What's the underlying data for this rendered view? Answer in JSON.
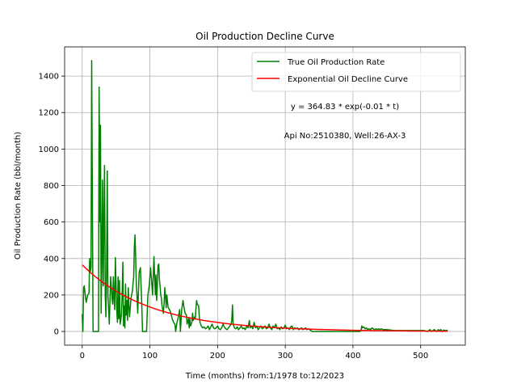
{
  "chart_data": {
    "type": "line",
    "title": "Oil Production Decline Curve",
    "xlabel": "Time (months) from:1/1978 to:12/2023",
    "ylabel": "Oil Production Rate (bbl/month)",
    "xlim": [
      -26,
      566
    ],
    "ylim": [
      -75,
      1560
    ],
    "xticks": [
      0,
      100,
      200,
      300,
      400,
      500
    ],
    "yticks": [
      0,
      200,
      400,
      600,
      800,
      1000,
      1200,
      1400
    ],
    "grid": true,
    "legend_position": "top-right",
    "annotations": [
      "y = 364.83 * exp(-0.01 * t)",
      "Api No:2510380, Well:26-AX-3"
    ],
    "series": [
      {
        "name": "True Oil Production Rate",
        "color": "#008000",
        "points": [
          [
            0,
            95
          ],
          [
            1,
            0
          ],
          [
            2,
            240
          ],
          [
            3,
            250
          ],
          [
            5,
            180
          ],
          [
            6,
            160
          ],
          [
            8,
            200
          ],
          [
            10,
            210
          ],
          [
            11,
            400
          ],
          [
            12,
            330
          ],
          [
            13,
            350
          ],
          [
            14,
            1485
          ],
          [
            15,
            700
          ],
          [
            16,
            0
          ],
          [
            18,
            0
          ],
          [
            20,
            0
          ],
          [
            22,
            0
          ],
          [
            24,
            0
          ],
          [
            25,
            1340
          ],
          [
            26,
            600
          ],
          [
            27,
            1130
          ],
          [
            28,
            100
          ],
          [
            29,
            400
          ],
          [
            30,
            830
          ],
          [
            31,
            250
          ],
          [
            32,
            600
          ],
          [
            33,
            910
          ],
          [
            34,
            200
          ],
          [
            35,
            80
          ],
          [
            36,
            300
          ],
          [
            37,
            880
          ],
          [
            38,
            200
          ],
          [
            40,
            40
          ],
          [
            42,
            300
          ],
          [
            44,
            190
          ],
          [
            45,
            150
          ],
          [
            46,
            300
          ],
          [
            47,
            180
          ],
          [
            48,
            120
          ],
          [
            49,
            405
          ],
          [
            50,
            250
          ],
          [
            51,
            120
          ],
          [
            52,
            50
          ],
          [
            53,
            300
          ],
          [
            54,
            70
          ],
          [
            55,
            280
          ],
          [
            56,
            40
          ],
          [
            57,
            60
          ],
          [
            58,
            100
          ],
          [
            59,
            200
          ],
          [
            60,
            380
          ],
          [
            61,
            30
          ],
          [
            62,
            140
          ],
          [
            63,
            20
          ],
          [
            64,
            260
          ],
          [
            65,
            90
          ],
          [
            66,
            170
          ],
          [
            67,
            60
          ],
          [
            68,
            240
          ],
          [
            69,
            140
          ],
          [
            70,
            80
          ],
          [
            72,
            180
          ],
          [
            74,
            220
          ],
          [
            76,
            300
          ],
          [
            77,
            460
          ],
          [
            78,
            530
          ],
          [
            79,
            400
          ],
          [
            80,
            250
          ],
          [
            81,
            200
          ],
          [
            82,
            100
          ],
          [
            84,
            320
          ],
          [
            86,
            350
          ],
          [
            88,
            150
          ],
          [
            89,
            0
          ],
          [
            91,
            0
          ],
          [
            93,
            0
          ],
          [
            95,
            0
          ],
          [
            97,
            200
          ],
          [
            99,
            250
          ],
          [
            101,
            350
          ],
          [
            103,
            250
          ],
          [
            104,
            200
          ],
          [
            105,
            320
          ],
          [
            106,
            410
          ],
          [
            107,
            300
          ],
          [
            108,
            200
          ],
          [
            109,
            310
          ],
          [
            110,
            170
          ],
          [
            111,
            250
          ],
          [
            112,
            360
          ],
          [
            113,
            370
          ],
          [
            114,
            290
          ],
          [
            115,
            250
          ],
          [
            116,
            200
          ],
          [
            117,
            180
          ],
          [
            118,
            140
          ],
          [
            120,
            100
          ],
          [
            121,
            160
          ],
          [
            122,
            240
          ],
          [
            123,
            200
          ],
          [
            124,
            130
          ],
          [
            125,
            200
          ],
          [
            126,
            160
          ],
          [
            127,
            130
          ],
          [
            129,
            120
          ],
          [
            131,
            100
          ],
          [
            133,
            70
          ],
          [
            135,
            50
          ],
          [
            137,
            40
          ],
          [
            138,
            0
          ],
          [
            140,
            50
          ],
          [
            142,
            80
          ],
          [
            144,
            120
          ],
          [
            145,
            0
          ],
          [
            147,
            120
          ],
          [
            149,
            170
          ],
          [
            150,
            140
          ],
          [
            152,
            100
          ],
          [
            154,
            90
          ],
          [
            155,
            40
          ],
          [
            157,
            70
          ],
          [
            158,
            20
          ],
          [
            159,
            70
          ],
          [
            160,
            30
          ],
          [
            162,
            50
          ],
          [
            163,
            100
          ],
          [
            164,
            60
          ],
          [
            166,
            80
          ],
          [
            167,
            70
          ],
          [
            168,
            120
          ],
          [
            169,
            170
          ],
          [
            170,
            150
          ],
          [
            172,
            140
          ],
          [
            173,
            80
          ],
          [
            174,
            50
          ],
          [
            176,
            30
          ],
          [
            178,
            20
          ],
          [
            180,
            25
          ],
          [
            182,
            15
          ],
          [
            184,
            20
          ],
          [
            186,
            30
          ],
          [
            188,
            10
          ],
          [
            190,
            25
          ],
          [
            192,
            40
          ],
          [
            194,
            20
          ],
          [
            196,
            15
          ],
          [
            198,
            20
          ],
          [
            200,
            30
          ],
          [
            202,
            15
          ],
          [
            204,
            10
          ],
          [
            206,
            20
          ],
          [
            208,
            40
          ],
          [
            210,
            25
          ],
          [
            212,
            15
          ],
          [
            214,
            10
          ],
          [
            216,
            20
          ],
          [
            218,
            30
          ],
          [
            220,
            40
          ],
          [
            221,
            60
          ],
          [
            222,
            145
          ],
          [
            223,
            40
          ],
          [
            225,
            20
          ],
          [
            227,
            15
          ],
          [
            229,
            25
          ],
          [
            231,
            10
          ],
          [
            233,
            20
          ],
          [
            235,
            30
          ],
          [
            237,
            15
          ],
          [
            239,
            20
          ],
          [
            241,
            10
          ],
          [
            243,
            30
          ],
          [
            245,
            20
          ],
          [
            247,
            60
          ],
          [
            248,
            20
          ],
          [
            250,
            30
          ],
          [
            252,
            15
          ],
          [
            254,
            50
          ],
          [
            256,
            20
          ],
          [
            258,
            30
          ],
          [
            260,
            10
          ],
          [
            262,
            20
          ],
          [
            264,
            30
          ],
          [
            266,
            15
          ],
          [
            268,
            20
          ],
          [
            270,
            30
          ],
          [
            272,
            15
          ],
          [
            274,
            20
          ],
          [
            276,
            40
          ],
          [
            278,
            20
          ],
          [
            280,
            10
          ],
          [
            282,
            30
          ],
          [
            284,
            20
          ],
          [
            286,
            40
          ],
          [
            288,
            15
          ],
          [
            290,
            20
          ],
          [
            292,
            10
          ],
          [
            294,
            25
          ],
          [
            296,
            15
          ],
          [
            298,
            20
          ],
          [
            300,
            35
          ],
          [
            302,
            15
          ],
          [
            304,
            20
          ],
          [
            306,
            10
          ],
          [
            308,
            25
          ],
          [
            310,
            30
          ],
          [
            312,
            10
          ],
          [
            314,
            20
          ],
          [
            316,
            15
          ],
          [
            318,
            20
          ],
          [
            320,
            10
          ],
          [
            322,
            15
          ],
          [
            324,
            20
          ],
          [
            326,
            10
          ],
          [
            328,
            15
          ],
          [
            330,
            20
          ],
          [
            332,
            10
          ],
          [
            334,
            15
          ],
          [
            336,
            10
          ],
          [
            338,
            5
          ],
          [
            340,
            0
          ],
          [
            345,
            0
          ],
          [
            350,
            0
          ],
          [
            355,
            0
          ],
          [
            360,
            0
          ],
          [
            365,
            0
          ],
          [
            370,
            0
          ],
          [
            375,
            0
          ],
          [
            380,
            0
          ],
          [
            385,
            0
          ],
          [
            390,
            0
          ],
          [
            395,
            0
          ],
          [
            400,
            0
          ],
          [
            405,
            0
          ],
          [
            410,
            0
          ],
          [
            412,
            5
          ],
          [
            413,
            30
          ],
          [
            414,
            20
          ],
          [
            416,
            25
          ],
          [
            418,
            15
          ],
          [
            420,
            20
          ],
          [
            422,
            10
          ],
          [
            424,
            15
          ],
          [
            426,
            10
          ],
          [
            428,
            20
          ],
          [
            430,
            15
          ],
          [
            432,
            10
          ],
          [
            434,
            15
          ],
          [
            436,
            10
          ],
          [
            438,
            15
          ],
          [
            440,
            10
          ],
          [
            442,
            15
          ],
          [
            444,
            10
          ],
          [
            446,
            10
          ],
          [
            448,
            10
          ],
          [
            450,
            10
          ],
          [
            455,
            8
          ],
          [
            460,
            5
          ],
          [
            465,
            5
          ],
          [
            470,
            5
          ],
          [
            475,
            5
          ],
          [
            480,
            5
          ],
          [
            485,
            5
          ],
          [
            490,
            5
          ],
          [
            495,
            5
          ],
          [
            500,
            5
          ],
          [
            505,
            5
          ],
          [
            510,
            0
          ],
          [
            512,
            5
          ],
          [
            514,
            10
          ],
          [
            516,
            0
          ],
          [
            518,
            5
          ],
          [
            520,
            10
          ],
          [
            522,
            5
          ],
          [
            524,
            0
          ],
          [
            526,
            10
          ],
          [
            528,
            5
          ],
          [
            530,
            10
          ],
          [
            532,
            0
          ],
          [
            534,
            8
          ],
          [
            536,
            5
          ],
          [
            538,
            5
          ],
          [
            540,
            8
          ]
        ]
      },
      {
        "name": "Exponential Oil Decline Curve",
        "color": "#ff0000",
        "x": [
          0,
          10,
          20,
          30,
          40,
          50,
          60,
          70,
          80,
          90,
          100,
          110,
          120,
          130,
          140,
          150,
          160,
          170,
          180,
          190,
          200,
          210,
          220,
          230,
          240,
          250,
          260,
          270,
          280,
          290,
          300,
          310,
          320,
          330,
          340,
          350,
          360,
          370,
          380,
          390,
          400,
          410,
          420,
          430,
          440,
          450,
          460,
          470,
          480,
          490,
          500,
          510,
          520,
          530,
          540
        ],
        "values": [
          364.83,
          330.1,
          298.7,
          270.3,
          244.6,
          221.3,
          200.2,
          181.2,
          163.9,
          148.3,
          134.2,
          121.4,
          109.9,
          99.4,
          90.0,
          81.4,
          73.7,
          66.7,
          60.3,
          54.6,
          49.4,
          44.7,
          40.4,
          36.6,
          33.1,
          29.9,
          27.1,
          24.5,
          22.2,
          20.1,
          18.2,
          16.4,
          14.9,
          13.4,
          12.2,
          11.0,
          10.0,
          9.0,
          8.1,
          7.4,
          6.7,
          6.0,
          5.5,
          4.9,
          4.5,
          4.0,
          3.7,
          3.3,
          3.0,
          2.7,
          2.5,
          2.2,
          2.0,
          1.8,
          1.6
        ]
      }
    ]
  }
}
